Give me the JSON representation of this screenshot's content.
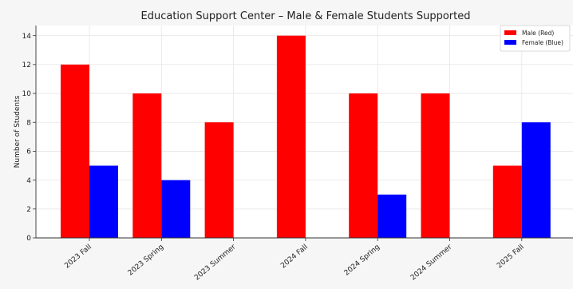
{
  "chart_data": {
    "type": "bar",
    "title": "Education Support Center – Male & Female Students Supported",
    "xlabel": "",
    "ylabel": "Number of Students",
    "categories": [
      "2023 Fall",
      "2023 Spring",
      "2023 Summer",
      "2024 Fall",
      "2024 Spring",
      "2024 Summer",
      "2025 Fall"
    ],
    "series": [
      {
        "name": "Male (Red)",
        "color": "#ff0000",
        "values": [
          12,
          10,
          8,
          14,
          10,
          10,
          5
        ]
      },
      {
        "name": "Female (Blue)",
        "color": "#0000ff",
        "values": [
          5,
          4,
          0,
          0,
          3,
          0,
          8
        ]
      }
    ],
    "ylim": [
      0,
      14.7
    ],
    "yticks": [
      0,
      2,
      4,
      6,
      8,
      10,
      12,
      14
    ],
    "grid": true,
    "legend_position": "top-right"
  }
}
